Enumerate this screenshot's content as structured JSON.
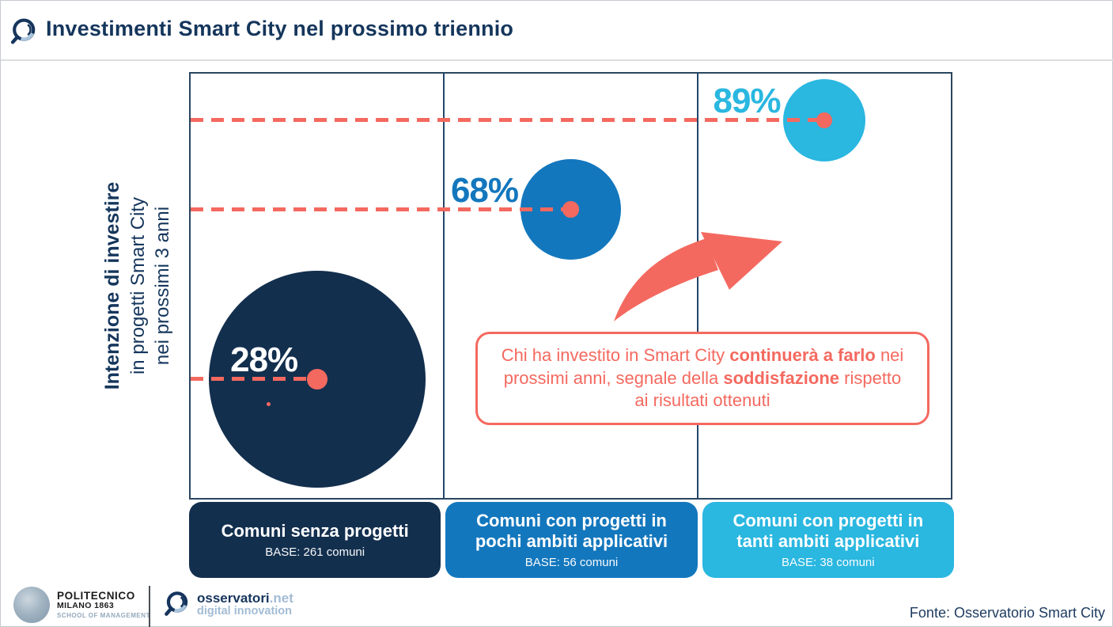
{
  "header": {
    "title": "Investimenti Smart City nel prossimo triennio"
  },
  "colors": {
    "navy": "#132F4E",
    "blue": "#1377BD",
    "cyan": "#2AB7E0",
    "coral": "#F4695F",
    "title_text": "#15365C"
  },
  "chart_data": {
    "type": "scatter",
    "subtype": "bubble",
    "title": "Investimenti Smart City nel prossimo triennio",
    "ylabel": {
      "bold": "Intenzione di investire",
      "line2": "in progetti Smart City",
      "line3": "nei prossimi 3 anni"
    },
    "ylim": [
      0,
      100
    ],
    "y_unit": "%",
    "grid": "column dividers only, dashed reference line from y-axis to each bubble center",
    "legend_position": "none",
    "bubble_size_meaning": "numero di comuni (BASE)",
    "points": [
      {
        "category": "Comuni senza progetti",
        "base_label": "BASE: 261 comuni",
        "base": 261,
        "value_pct": 28,
        "label": "28%",
        "color": "#132F4E",
        "label_color": "#FFFFFF"
      },
      {
        "category": "Comuni con progetti in pochi ambiti applicativi",
        "base_label": "BASE: 56 comuni",
        "base": 56,
        "value_pct": 68,
        "label": "68%",
        "color": "#1377BD",
        "label_color": "#1377BD"
      },
      {
        "category": "Comuni con progetti in tanti ambiti applicativi",
        "base_label": "BASE: 38 comuni",
        "base": 38,
        "value_pct": 89,
        "label": "89%",
        "color": "#2AB7E0",
        "label_color": "#2AB7E0"
      }
    ],
    "annotation": {
      "segments": [
        {
          "text": "Chi ha investito in Smart City ",
          "bold": false
        },
        {
          "text": "continuerà a farlo",
          "bold": true
        },
        {
          "text": " nei prossimi anni, segnale della ",
          "bold": false
        },
        {
          "text": "soddisfazione",
          "bold": true
        },
        {
          "text": " rispetto ai risultati ottenuti",
          "bold": false
        }
      ]
    }
  },
  "footer": {
    "politecnico": {
      "line1": "POLITECNICO",
      "line2": "MILANO 1863",
      "line3": "SCHOOL OF MANAGEMENT"
    },
    "osservatori": {
      "brand": "osservatori",
      "suffix": ".net",
      "tagline": "digital innovation"
    },
    "fonte": "Fonte: Osservatorio Smart City"
  }
}
